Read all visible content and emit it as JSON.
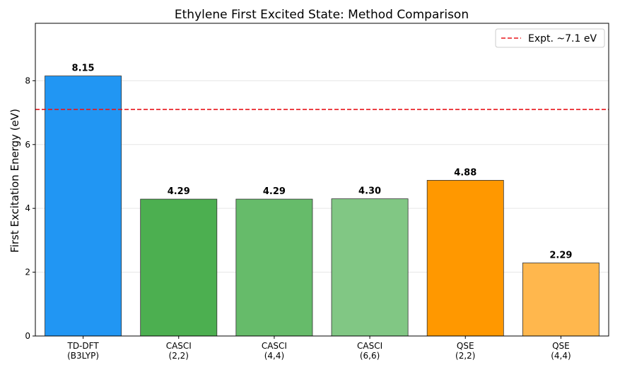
{
  "chart_data": {
    "type": "bar",
    "title": "Ethylene First Excited State: Method Comparison",
    "xlabel": "",
    "ylabel": "First Excitation Energy (eV)",
    "ylim": [
      0,
      9.8
    ],
    "yticks": [
      0,
      2,
      4,
      6,
      8
    ],
    "grid": "horizontal",
    "categories": [
      [
        "TD-DFT",
        "(B3LYP)"
      ],
      [
        "CASCI",
        "(2,2)"
      ],
      [
        "CASCI",
        "(4,4)"
      ],
      [
        "CASCI",
        "(6,6)"
      ],
      [
        "QSE",
        "(2,2)"
      ],
      [
        "QSE",
        "(4,4)"
      ]
    ],
    "values": [
      8.15,
      4.29,
      4.29,
      4.3,
      4.88,
      2.29
    ],
    "value_labels": [
      "8.15",
      "4.29",
      "4.29",
      "4.30",
      "4.88",
      "2.29"
    ],
    "colors": [
      "#2196F3",
      "#4CAF50",
      "#66BB6A",
      "#81C784",
      "#FF9800",
      "#FFB74D"
    ],
    "reference_line": {
      "value": 7.1,
      "label": "Expt. ~7.1 eV",
      "color": "#E8161B",
      "style": "dashed"
    },
    "legend_position": "top-right"
  }
}
